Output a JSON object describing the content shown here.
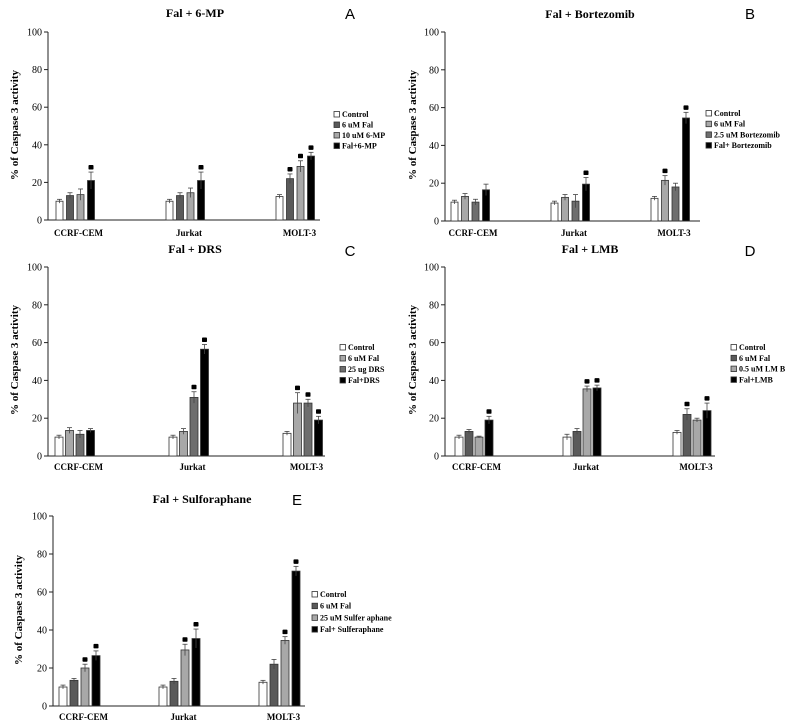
{
  "chart_data": [
    {
      "type": "bar",
      "letter": "A",
      "title": "Fal + 6-MP",
      "ylabel": "% of Caspase 3 activity",
      "ylim": [
        0,
        100
      ],
      "yticks": [
        0,
        20,
        40,
        60,
        80,
        100
      ],
      "categories": [
        "CCRF-CEM",
        "Jurkat",
        "MOLT-3"
      ],
      "series": [
        {
          "name": "Control",
          "color": "#ffffff",
          "values": [
            10,
            10,
            12.5
          ],
          "errors": [
            1,
            1,
            1
          ],
          "sig": [
            false,
            false,
            false
          ]
        },
        {
          "name": "6 uM Fal",
          "color": "#5a5a5a",
          "values": [
            13,
            13,
            22
          ],
          "errors": [
            1.5,
            1.5,
            2.5
          ],
          "sig": [
            false,
            false,
            true
          ]
        },
        {
          "name": "10 uM 6-MP",
          "color": "#a8a8a8",
          "values": [
            13.5,
            14.5,
            28.5
          ],
          "errors": [
            3,
            2.5,
            3
          ],
          "sig": [
            false,
            false,
            true
          ]
        },
        {
          "name": "Fal+6-MP",
          "color": "#000000",
          "values": [
            21,
            21,
            34
          ],
          "errors": [
            4.5,
            4.5,
            2
          ],
          "sig": [
            true,
            true,
            true
          ]
        }
      ]
    },
    {
      "type": "bar",
      "letter": "B",
      "title": "Fal + Bortezomib",
      "ylabel": "% of Caspase 3 activity",
      "ylim": [
        0,
        100
      ],
      "yticks": [
        0,
        20,
        40,
        60,
        80,
        100
      ],
      "categories": [
        "CCRF-CEM",
        "Jurkat",
        "MOLT-3"
      ],
      "series": [
        {
          "name": "Control",
          "color": "#ffffff",
          "values": [
            10,
            9.5,
            12
          ],
          "errors": [
            1,
            1,
            1
          ],
          "sig": [
            false,
            false,
            false
          ]
        },
        {
          "name": "6 uM Fal",
          "color": "#a8a8a8",
          "values": [
            13,
            12.5,
            21.5
          ],
          "errors": [
            1.5,
            1.5,
            2.5
          ],
          "sig": [
            false,
            false,
            true
          ]
        },
        {
          "name": "2.5 uM Bortezomib",
          "color": "#6e6e6e",
          "values": [
            10,
            10.5,
            18
          ],
          "errors": [
            1.5,
            3.5,
            2
          ],
          "sig": [
            false,
            false,
            false
          ]
        },
        {
          "name": "Fal+ Bortezomib",
          "color": "#000000",
          "values": [
            16.5,
            19.5,
            54.5
          ],
          "errors": [
            3,
            3.5,
            3
          ],
          "sig": [
            false,
            true,
            true
          ]
        }
      ]
    },
    {
      "type": "bar",
      "letter": "C",
      "title": "Fal + DRS",
      "ylabel": "% of Caspase 3 activity",
      "ylim": [
        0,
        100
      ],
      "yticks": [
        0,
        20,
        40,
        60,
        80,
        100
      ],
      "categories": [
        "CCRF-CEM",
        "Jurkat",
        "MOLT-3"
      ],
      "series": [
        {
          "name": "Control",
          "color": "#ffffff",
          "values": [
            10,
            10,
            12
          ],
          "errors": [
            1,
            1,
            1
          ],
          "sig": [
            false,
            false,
            false
          ]
        },
        {
          "name": "6 uM Fal",
          "color": "#a8a8a8",
          "values": [
            13.5,
            13,
            28
          ],
          "errors": [
            1.5,
            1.5,
            5.5
          ],
          "sig": [
            false,
            false,
            true
          ]
        },
        {
          "name": "25 ug DRS",
          "color": "#6e6e6e",
          "values": [
            11.5,
            31,
            28
          ],
          "errors": [
            2,
            3,
            2
          ],
          "sig": [
            false,
            true,
            true
          ]
        },
        {
          "name": "Fal+DRS",
          "color": "#000000",
          "values": [
            13.5,
            56.5,
            19
          ],
          "errors": [
            1,
            2.5,
            2
          ],
          "sig": [
            false,
            true,
            true
          ]
        }
      ]
    },
    {
      "type": "bar",
      "letter": "D",
      "title": "Fal + LMB",
      "ylabel": "% of Caspase 3 activity",
      "ylim": [
        0,
        100
      ],
      "yticks": [
        0,
        20,
        40,
        60,
        80,
        100
      ],
      "categories": [
        "CCRF-CEM",
        "Jurkat",
        "MOLT-3"
      ],
      "series": [
        {
          "name": "Control",
          "color": "#ffffff",
          "values": [
            10,
            10,
            12.5
          ],
          "errors": [
            1,
            1.5,
            1
          ],
          "sig": [
            false,
            false,
            false
          ]
        },
        {
          "name": "6 uM Fal",
          "color": "#5a5a5a",
          "values": [
            13,
            13,
            22
          ],
          "errors": [
            1,
            1.5,
            3
          ],
          "sig": [
            false,
            false,
            true
          ]
        },
        {
          "name": "0.5 uM LM B",
          "color": "#a8a8a8",
          "values": [
            10,
            35.5,
            19
          ],
          "errors": [
            0.5,
            1.5,
            1
          ],
          "sig": [
            false,
            true,
            false
          ]
        },
        {
          "name": "Fal+LMB",
          "color": "#000000",
          "values": [
            19,
            36,
            24
          ],
          "errors": [
            2,
            1.5,
            4
          ],
          "sig": [
            true,
            true,
            true
          ]
        }
      ]
    },
    {
      "type": "bar",
      "letter": "E",
      "title": "Fal +  Sulforaphane",
      "ylabel": "% of Caspase 3 activity",
      "ylim": [
        0,
        100
      ],
      "yticks": [
        0,
        20,
        40,
        60,
        80,
        100
      ],
      "categories": [
        "CCRF-CEM",
        "Jurkat",
        "MOLT-3"
      ],
      "series": [
        {
          "name": "Control",
          "color": "#ffffff",
          "values": [
            10,
            10,
            12.5
          ],
          "errors": [
            1,
            1,
            1
          ],
          "sig": [
            false,
            false,
            false
          ]
        },
        {
          "name": "6 uM Fal",
          "color": "#5a5a5a",
          "values": [
            13.5,
            13,
            22
          ],
          "errors": [
            1,
            1.5,
            2.5
          ],
          "sig": [
            false,
            false,
            false
          ]
        },
        {
          "name": "25 uM Sulfer aphane",
          "color": "#a8a8a8",
          "values": [
            20,
            29.5,
            34.5
          ],
          "errors": [
            2,
            3,
            2
          ],
          "sig": [
            true,
            true,
            true
          ]
        },
        {
          "name": "Fal+ Sulferaphane",
          "color": "#000000",
          "values": [
            26.5,
            35.5,
            71
          ],
          "errors": [
            2.5,
            5,
            2.5
          ],
          "sig": [
            true,
            true,
            true
          ]
        }
      ]
    }
  ]
}
